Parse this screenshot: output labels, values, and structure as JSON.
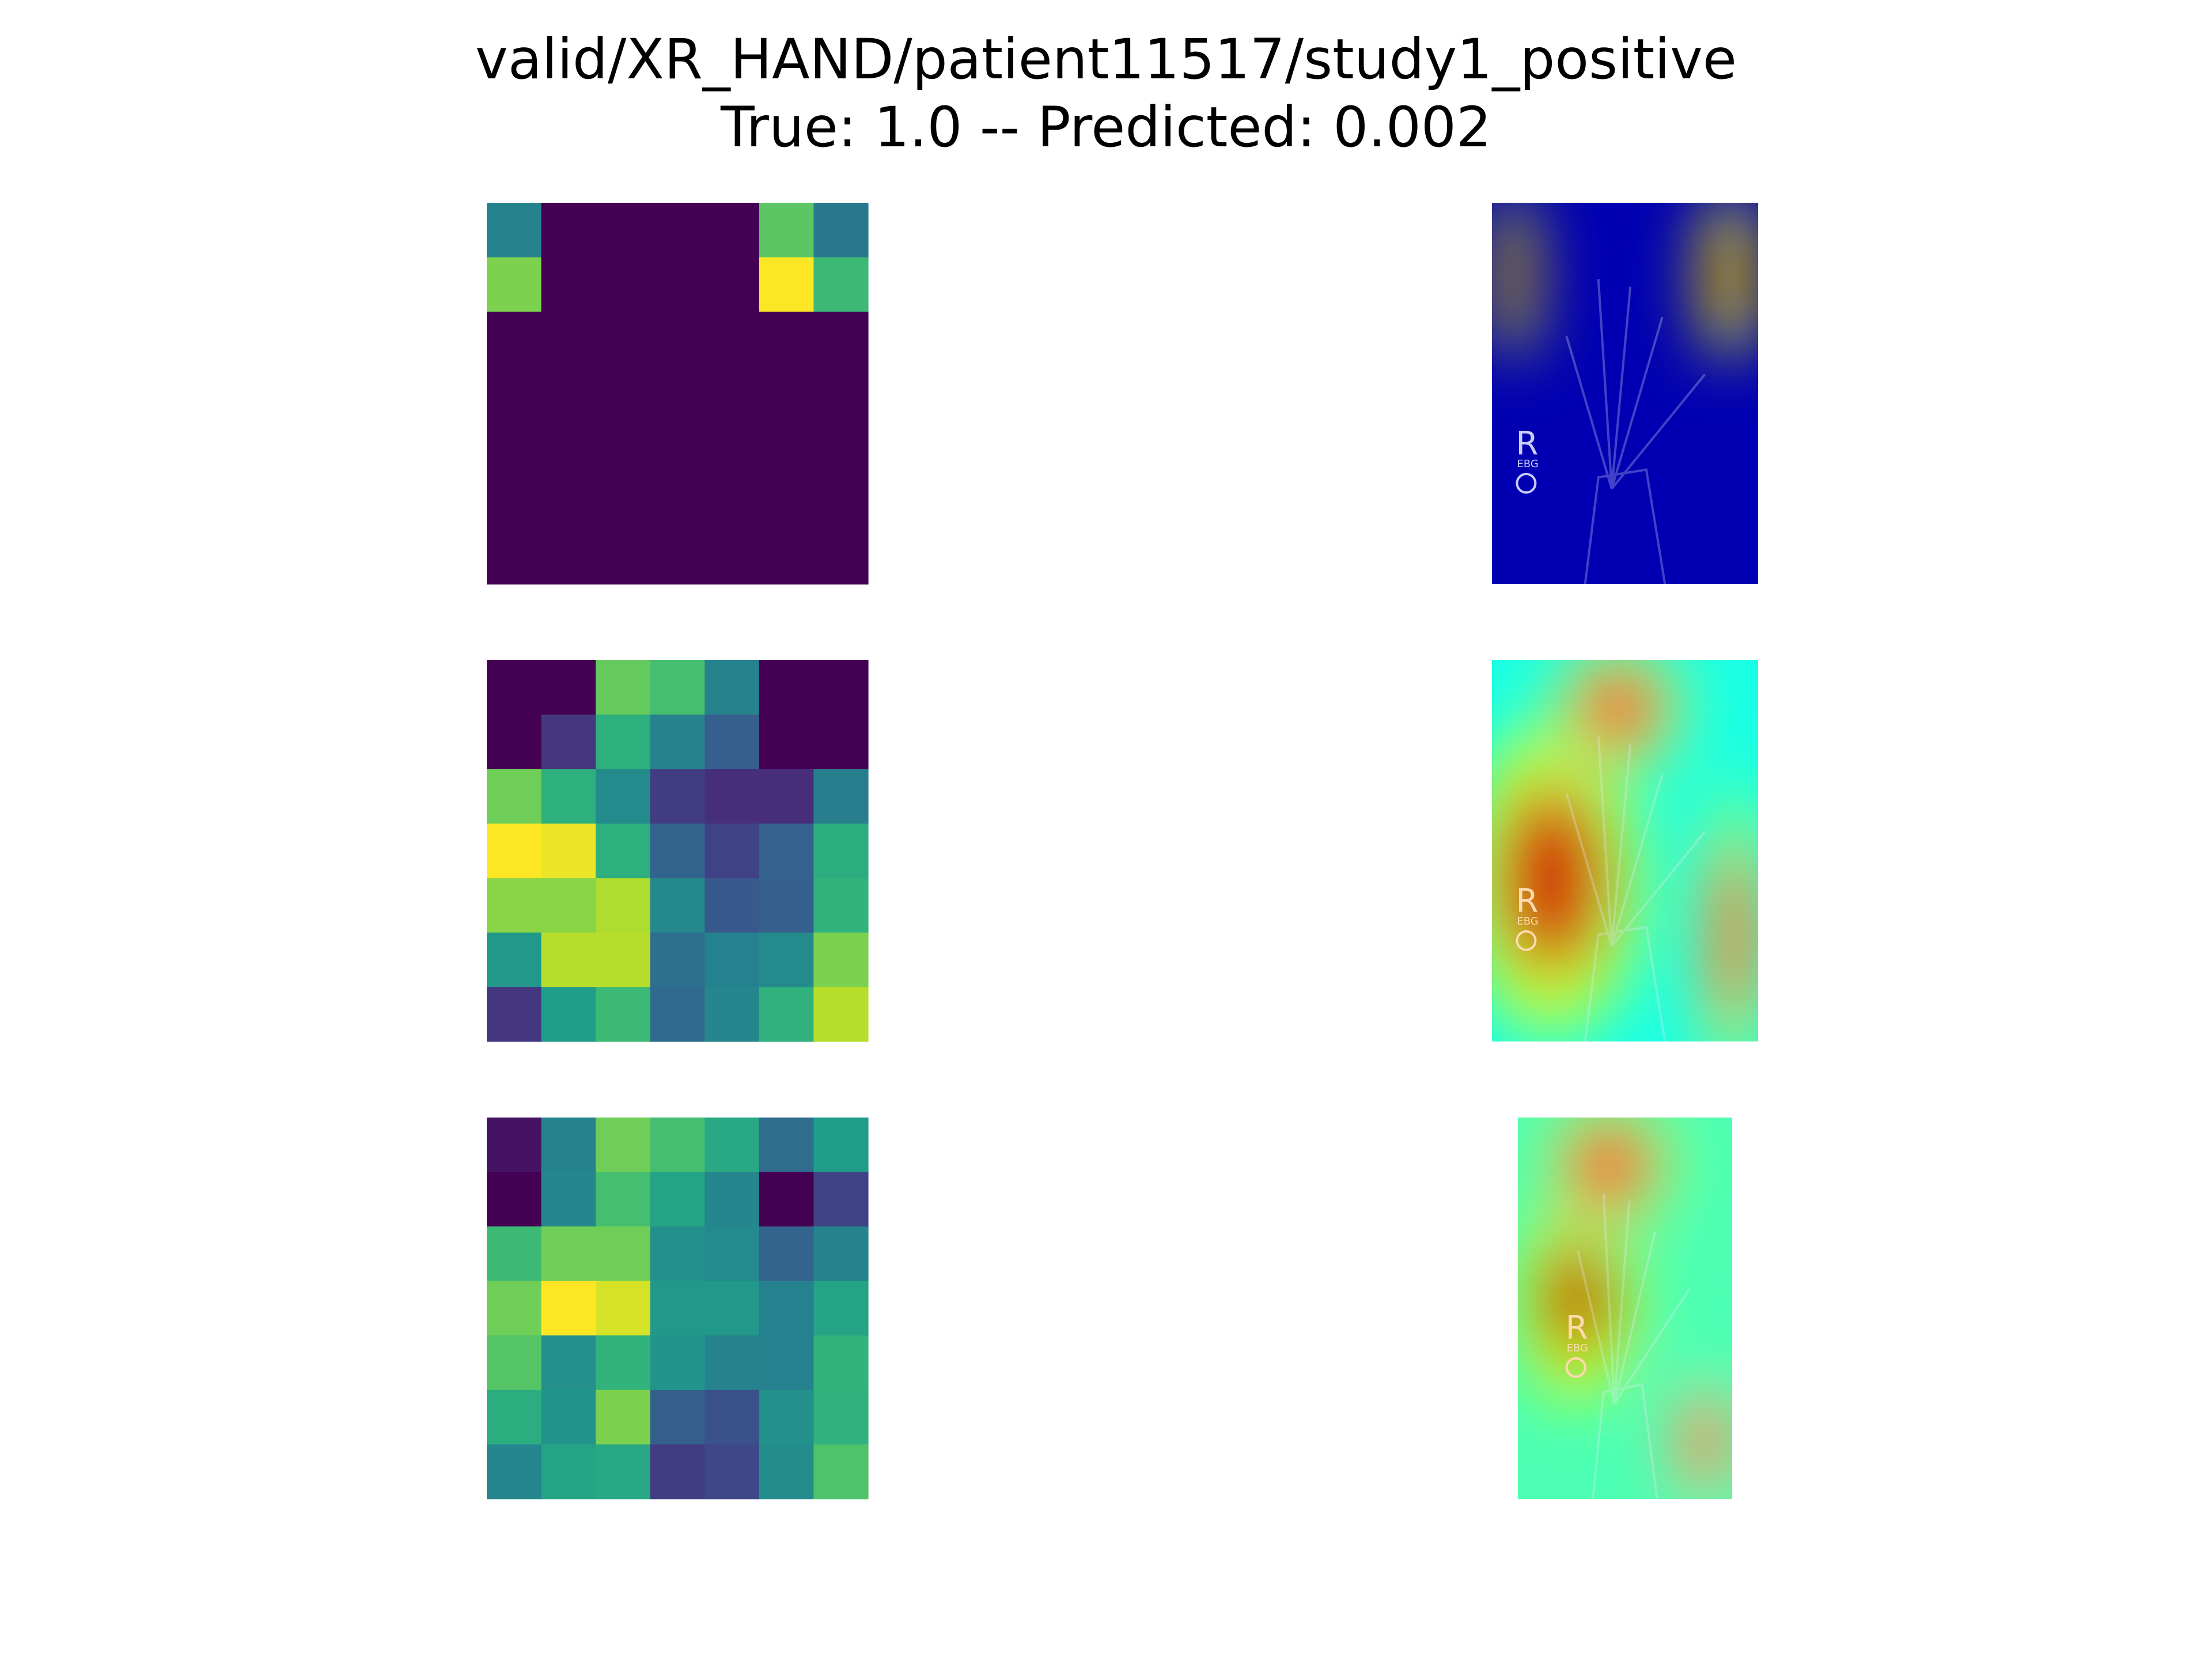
{
  "figure": {
    "title_line1": "valid/XR_HAND/patient11517/study1_positive",
    "title_line2": "True: 1.0 -- Predicted: 0.002"
  },
  "palette": {
    "viridis": [
      "#440154",
      "#482878",
      "#3e4989",
      "#31688e",
      "#26828e",
      "#1f9e89",
      "#35b779",
      "#6ece58",
      "#b5de2b",
      "#fde725"
    ],
    "jet": [
      "#00007f",
      "#0000ff",
      "#007fff",
      "#00ffff",
      "#7fff7f",
      "#ffff00",
      "#ff7f00",
      "#ff0000",
      "#7f0000"
    ],
    "xray_marker_letter": "R",
    "xray_marker_sub": "EBG"
  },
  "chart_data": [
    {
      "type": "heatmap",
      "name": "",
      "rows": 7,
      "cols": 7,
      "vmin": 0,
      "vmax": 1,
      "values": [
        [
          0.45,
          0.0,
          0.0,
          0.0,
          0.0,
          0.74,
          0.4
        ],
        [
          0.8,
          0.0,
          0.0,
          0.0,
          0.0,
          1.0,
          0.68
        ],
        [
          0.0,
          0.0,
          0.0,
          0.0,
          0.0,
          0.0,
          0.0
        ],
        [
          0.0,
          0.0,
          0.0,
          0.0,
          0.0,
          0.0,
          0.0
        ],
        [
          0.0,
          0.0,
          0.0,
          0.0,
          0.0,
          0.0,
          0.0
        ],
        [
          0.0,
          0.0,
          0.0,
          0.0,
          0.0,
          0.0,
          0.0
        ],
        [
          0.0,
          0.0,
          0.0,
          0.0,
          0.0,
          0.0,
          0.0
        ]
      ]
    },
    {
      "type": "image",
      "name": "",
      "overlay": "heatmap-on-xray",
      "hotspots": [
        {
          "x": 0.03,
          "y": 0.05,
          "w": 0.1,
          "h": 0.28,
          "level": 0.95
        },
        {
          "x": 0.82,
          "y": 0.05,
          "w": 0.15,
          "h": 0.28,
          "level": 0.95
        }
      ],
      "background_level": 0.05
    },
    {
      "type": "heatmap",
      "name": "",
      "rows": 7,
      "cols": 7,
      "vmin": 0,
      "vmax": 1,
      "values": [
        [
          0.0,
          0.0,
          0.76,
          0.7,
          0.45,
          0.0,
          0.0
        ],
        [
          0.0,
          0.16,
          0.63,
          0.45,
          0.3,
          0.0,
          0.0
        ],
        [
          0.78,
          0.63,
          0.48,
          0.18,
          0.13,
          0.13,
          0.43
        ],
        [
          1.0,
          0.97,
          0.63,
          0.32,
          0.2,
          0.31,
          0.62
        ],
        [
          0.82,
          0.82,
          0.88,
          0.47,
          0.28,
          0.3,
          0.65
        ],
        [
          0.53,
          0.89,
          0.89,
          0.36,
          0.44,
          0.48,
          0.8
        ],
        [
          0.16,
          0.55,
          0.68,
          0.34,
          0.46,
          0.64,
          0.89
        ]
      ]
    },
    {
      "type": "image",
      "name": "",
      "overlay": "heatmap-on-xray",
      "hotspots": [
        {
          "x": 0.0,
          "y": 0.3,
          "w": 0.45,
          "h": 0.55,
          "level": 0.92
        },
        {
          "x": 0.3,
          "y": 0.0,
          "w": 0.35,
          "h": 0.25,
          "level": 0.85
        },
        {
          "x": 0.82,
          "y": 0.45,
          "w": 0.18,
          "h": 0.55,
          "level": 0.85
        }
      ],
      "background_level": 0.4
    },
    {
      "type": "heatmap",
      "name": "",
      "rows": 7,
      "cols": 7,
      "vmin": 0,
      "vmax": 1,
      "values": [
        [
          0.05,
          0.45,
          0.78,
          0.7,
          0.6,
          0.35,
          0.55
        ],
        [
          0.0,
          0.46,
          0.7,
          0.58,
          0.46,
          0.0,
          0.2
        ],
        [
          0.68,
          0.78,
          0.78,
          0.5,
          0.48,
          0.32,
          0.45
        ],
        [
          0.78,
          1.0,
          0.94,
          0.53,
          0.53,
          0.44,
          0.58
        ],
        [
          0.73,
          0.5,
          0.65,
          0.52,
          0.45,
          0.44,
          0.65
        ],
        [
          0.62,
          0.52,
          0.8,
          0.3,
          0.25,
          0.5,
          0.64
        ],
        [
          0.46,
          0.58,
          0.6,
          0.18,
          0.22,
          0.49,
          0.72
        ]
      ]
    },
    {
      "type": "image",
      "name": "",
      "overlay": "heatmap-on-xray",
      "hotspots": [
        {
          "x": 0.1,
          "y": 0.3,
          "w": 0.35,
          "h": 0.35,
          "level": 0.95
        },
        {
          "x": 0.2,
          "y": 0.0,
          "w": 0.45,
          "h": 0.25,
          "level": 0.85
        },
        {
          "x": 0.75,
          "y": 0.7,
          "w": 0.25,
          "h": 0.3,
          "level": 0.8
        }
      ],
      "background_level": 0.45
    }
  ]
}
